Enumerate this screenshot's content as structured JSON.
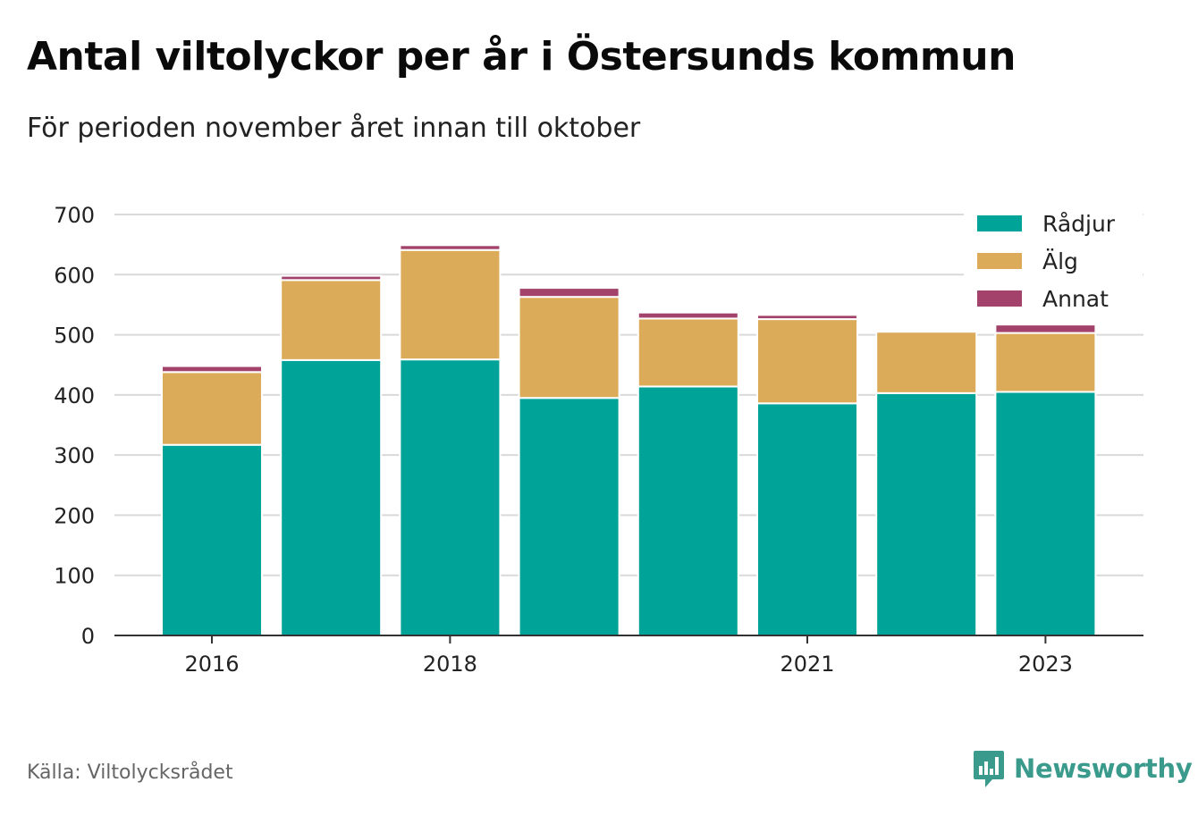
{
  "header": {
    "title": "Antal viltolyckor per år i Östersunds kommun",
    "subtitle": "För perioden november året innan till oktober"
  },
  "footer": {
    "source": "Källa: Viltolycksrådet",
    "brand": "Newsworthy",
    "brand_icon": "newsworthy-logo-icon"
  },
  "colors": {
    "radjur": "#00a398",
    "alg": "#dbab5a",
    "annat": "#a3426a",
    "grid": "#d9d9d9",
    "axis": "#333333",
    "brand": "#3a9a8c"
  },
  "chart_data": {
    "type": "bar",
    "stacked": true,
    "x": [
      2016,
      2017,
      2018,
      2019,
      2020,
      2021,
      2022,
      2023
    ],
    "x_tick_labels": [
      "2016",
      "2018",
      "2021",
      "2023"
    ],
    "y_ticks": [
      0,
      100,
      200,
      300,
      400,
      500,
      600,
      700
    ],
    "ylim": [
      0,
      700
    ],
    "grid": true,
    "legend_position": "top-right",
    "series": [
      {
        "name": "Rådjur",
        "color": "#00a398",
        "values": [
          317,
          458,
          459,
          395,
          414,
          386,
          403,
          405
        ]
      },
      {
        "name": "Älg",
        "color": "#dbab5a",
        "values": [
          121,
          133,
          182,
          168,
          113,
          140,
          102,
          98
        ]
      },
      {
        "name": "Annat",
        "color": "#a3426a",
        "values": [
          10,
          7,
          8,
          15,
          10,
          7,
          0,
          14
        ]
      }
    ]
  }
}
